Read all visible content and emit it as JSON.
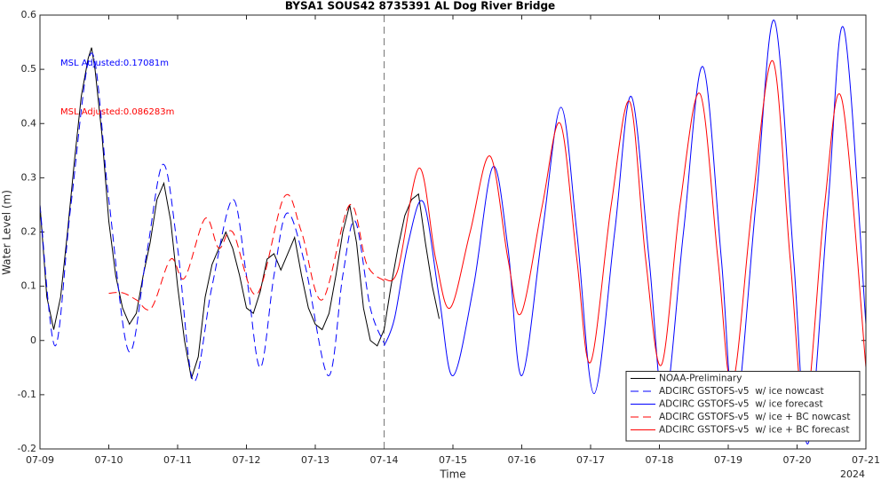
{
  "chart_data": {
    "type": "line",
    "title": "BYSA1 SOUS42 8735391 AL Dog River Bridge",
    "x_label": "Time",
    "y_label": "Water Level (m)",
    "year_label": "2024",
    "annotations": [
      {
        "text": "MSL Adjusted:0.17081m",
        "color": "#0000ff"
      },
      {
        "text": "MSL Adjusted:0.086283m",
        "color": "#ff0000"
      }
    ],
    "vline": 5,
    "xlim": [
      0,
      12
    ],
    "xticks": [
      {
        "value": 0,
        "label": "07-09"
      },
      {
        "value": 1,
        "label": "07-10"
      },
      {
        "value": 2,
        "label": "07-11"
      },
      {
        "value": 3,
        "label": "07-12"
      },
      {
        "value": 4,
        "label": "07-13"
      },
      {
        "value": 5,
        "label": "07-14"
      },
      {
        "value": 6,
        "label": "07-15"
      },
      {
        "value": 7,
        "label": "07-16"
      },
      {
        "value": 8,
        "label": "07-17"
      },
      {
        "value": 9,
        "label": "07-18"
      },
      {
        "value": 10,
        "label": "07-19"
      },
      {
        "value": 11,
        "label": "07-20"
      },
      {
        "value": 12,
        "label": "07-21"
      }
    ],
    "ylim": [
      -0.2,
      0.6
    ],
    "yticks": [
      -0.2,
      -0.1,
      0,
      0.1,
      0.2,
      0.3,
      0.4,
      0.5,
      0.6
    ],
    "grid": false,
    "legend": "lower-right",
    "series": [
      {
        "name": "NOAA-Preliminary",
        "color": "#000000",
        "linestyle": "solid",
        "x": [
          0,
          0.1,
          0.2,
          0.3,
          0.4,
          0.5,
          0.6,
          0.7,
          0.75,
          0.8,
          0.9,
          1.0,
          1.1,
          1.2,
          1.3,
          1.4,
          1.5,
          1.6,
          1.7,
          1.8,
          1.9,
          2.0,
          2.1,
          2.2,
          2.3,
          2.4,
          2.5,
          2.6,
          2.7,
          2.8,
          2.9,
          3.0,
          3.1,
          3.2,
          3.3,
          3.4,
          3.5,
          3.6,
          3.7,
          3.8,
          3.9,
          4.0,
          4.1,
          4.2,
          4.3,
          4.4,
          4.5,
          4.6,
          4.7,
          4.8,
          4.9,
          5.0,
          5.1,
          5.2,
          5.3,
          5.4,
          5.5,
          5.6,
          5.7,
          5.8
        ],
        "values": [
          0.25,
          0.08,
          0.02,
          0.08,
          0.2,
          0.33,
          0.45,
          0.52,
          0.54,
          0.5,
          0.38,
          0.22,
          0.12,
          0.06,
          0.03,
          0.05,
          0.12,
          0.18,
          0.26,
          0.29,
          0.22,
          0.1,
          0.0,
          -0.07,
          -0.03,
          0.08,
          0.14,
          0.17,
          0.2,
          0.17,
          0.12,
          0.06,
          0.05,
          0.09,
          0.15,
          0.16,
          0.13,
          0.16,
          0.19,
          0.12,
          0.06,
          0.03,
          0.02,
          0.05,
          0.12,
          0.2,
          0.25,
          0.18,
          0.06,
          0.0,
          -0.01,
          0.02,
          0.1,
          0.17,
          0.23,
          0.26,
          0.27,
          0.18,
          0.1,
          0.04
        ]
      },
      {
        "name": "ADCIRC GSTOFS-v5  w/ ice nowcast",
        "color": "#0000ff",
        "linestyle": "dashed",
        "x": [
          0,
          0.22,
          0.45,
          0.75,
          1.0,
          1.29,
          1.55,
          1.79,
          2.0,
          2.23,
          2.5,
          2.8,
          3.0,
          3.2,
          3.4,
          3.59,
          3.85,
          4.19,
          4.4,
          4.58,
          4.8,
          5.0
        ],
        "values": [
          0.25,
          -0.01,
          0.25,
          0.53,
          0.26,
          -0.02,
          0.16,
          0.325,
          0.17,
          -0.075,
          0.1,
          0.26,
          0.12,
          -0.05,
          0.12,
          0.235,
          0.14,
          -0.065,
          0.12,
          0.22,
          0.06,
          -0.005
        ]
      },
      {
        "name": "ADCIRC GSTOFS-v5  w/ ice forecast",
        "color": "#0000ff",
        "linestyle": "solid",
        "x": [
          5.0,
          5.15,
          5.35,
          5.57,
          5.8,
          6.0,
          6.3,
          6.58,
          6.8,
          7.0,
          7.3,
          7.57,
          7.8,
          8.05,
          8.35,
          8.59,
          8.85,
          9.07,
          9.35,
          9.63,
          9.9,
          10.1,
          10.4,
          10.67,
          10.95,
          11.16,
          11.45,
          11.68,
          12.0
        ],
        "values": [
          -0.01,
          0.04,
          0.18,
          0.255,
          0.08,
          -0.065,
          0.1,
          0.32,
          0.17,
          -0.065,
          0.2,
          0.43,
          0.2,
          -0.098,
          0.2,
          0.45,
          0.15,
          -0.12,
          0.2,
          0.505,
          0.15,
          -0.14,
          0.25,
          0.59,
          0.15,
          -0.19,
          0.25,
          0.575,
          0.03
        ]
      },
      {
        "name": "ADCIRC GSTOFS-v5  w/ ice + BC nowcast",
        "color": "#ff0000",
        "linestyle": "dashed",
        "x": [
          1.0,
          1.2,
          1.4,
          1.62,
          1.9,
          2.1,
          2.4,
          2.6,
          2.8,
          3.15,
          3.55,
          3.8,
          4.1,
          4.5,
          4.75,
          5.0
        ],
        "values": [
          0.087,
          0.088,
          0.075,
          0.06,
          0.15,
          0.115,
          0.225,
          0.17,
          0.2,
          0.085,
          0.265,
          0.2,
          0.075,
          0.25,
          0.14,
          0.11
        ]
      },
      {
        "name": "ADCIRC GSTOFS-v5  w/ ice + BC forecast",
        "color": "#ff0000",
        "linestyle": "solid",
        "x": [
          5.0,
          5.2,
          5.51,
          5.75,
          5.96,
          6.25,
          6.54,
          6.8,
          6.99,
          7.3,
          7.56,
          7.8,
          8.0,
          8.3,
          8.57,
          8.8,
          9.03,
          9.3,
          9.59,
          9.85,
          10.06,
          10.35,
          10.65,
          10.9,
          11.12,
          11.4,
          11.65,
          12.0
        ],
        "values": [
          0.113,
          0.13,
          0.318,
          0.15,
          0.06,
          0.2,
          0.34,
          0.15,
          0.05,
          0.25,
          0.4,
          0.15,
          -0.04,
          0.25,
          0.44,
          0.15,
          -0.045,
          0.25,
          0.455,
          0.15,
          -0.08,
          0.25,
          0.515,
          0.15,
          -0.13,
          0.25,
          0.445,
          -0.05
        ]
      }
    ]
  }
}
